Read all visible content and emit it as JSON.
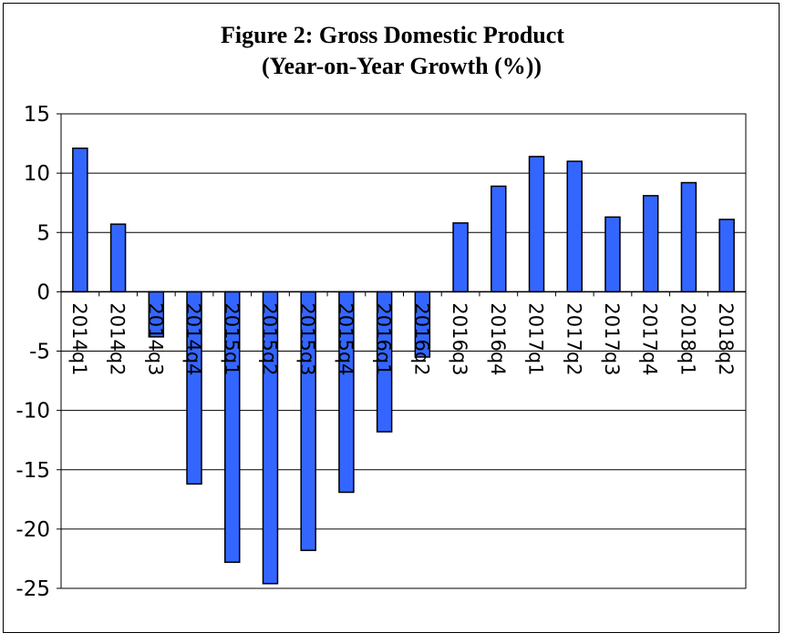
{
  "chart_data": {
    "type": "bar",
    "title_line1": "Figure 2: Gross Domestic Product",
    "title_line2": "(Year-on-Year Growth (%))",
    "xlabel": "",
    "ylabel": "",
    "ylim": [
      -25,
      15
    ],
    "yticks": [
      15,
      10,
      5,
      0,
      -5,
      -10,
      -15,
      -20,
      -25
    ],
    "grid": true,
    "bar_color": "#3366ff",
    "categories": [
      "2014q1",
      "2014q2",
      "2014q3",
      "2014q4",
      "2015q1",
      "2015q2",
      "2015q3",
      "2015q4",
      "2016q1",
      "2016q2",
      "2016q3",
      "2016q4",
      "2017q1",
      "2017q2",
      "2017q3",
      "2017q4",
      "2018q1",
      "2018q2"
    ],
    "values": [
      12.1,
      5.7,
      -3.8,
      -16.2,
      -22.8,
      -24.6,
      -21.8,
      -16.9,
      -11.8,
      -5.5,
      5.8,
      8.9,
      11.4,
      11.0,
      6.3,
      8.1,
      9.2,
      6.1
    ]
  }
}
